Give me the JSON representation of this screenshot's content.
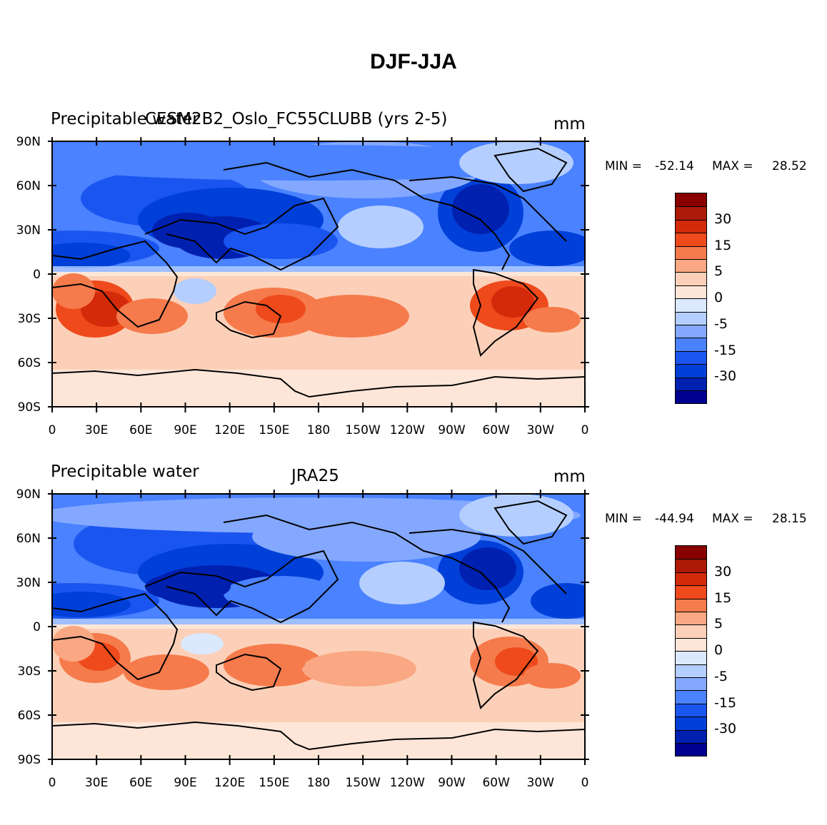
{
  "title": "DJF-JJA",
  "panels": [
    {
      "left_title": "Precipitable water",
      "center_title": "CESM2B2_Oslo_FC55CLUBB (yrs 2-5)",
      "units": "mm",
      "min_label": "MIN =",
      "min": "-52.14",
      "max_label": "MAX =",
      "max": "28.52"
    },
    {
      "left_title": "Precipitable water",
      "center_title": "JRA25",
      "units": "mm",
      "min_label": "MIN =",
      "min": "-44.94",
      "max_label": "MAX =",
      "max": "28.15"
    }
  ],
  "lat_labels": [
    "90N",
    "60N",
    "30N",
    "0",
    "30S",
    "60S",
    "90S"
  ],
  "lon_labels": [
    "0",
    "30E",
    "60E",
    "90E",
    "120E",
    "150E",
    "180",
    "150W",
    "120W",
    "90W",
    "60W",
    "30W",
    "0"
  ],
  "colorbar": {
    "colors": [
      "#000090",
      "#0020b0",
      "#0040d8",
      "#1a55f0",
      "#4a82ff",
      "#84a8ff",
      "#b4ceff",
      "#dbe9ff",
      "#fde6d8",
      "#fcd0b8",
      "#f9a883",
      "#f67b4c",
      "#ee4a1c",
      "#d32a0a",
      "#ad1a08",
      "#880000"
    ],
    "labels": [
      "30",
      "15",
      "5",
      "0",
      "-5",
      "-15",
      "-30"
    ]
  }
}
